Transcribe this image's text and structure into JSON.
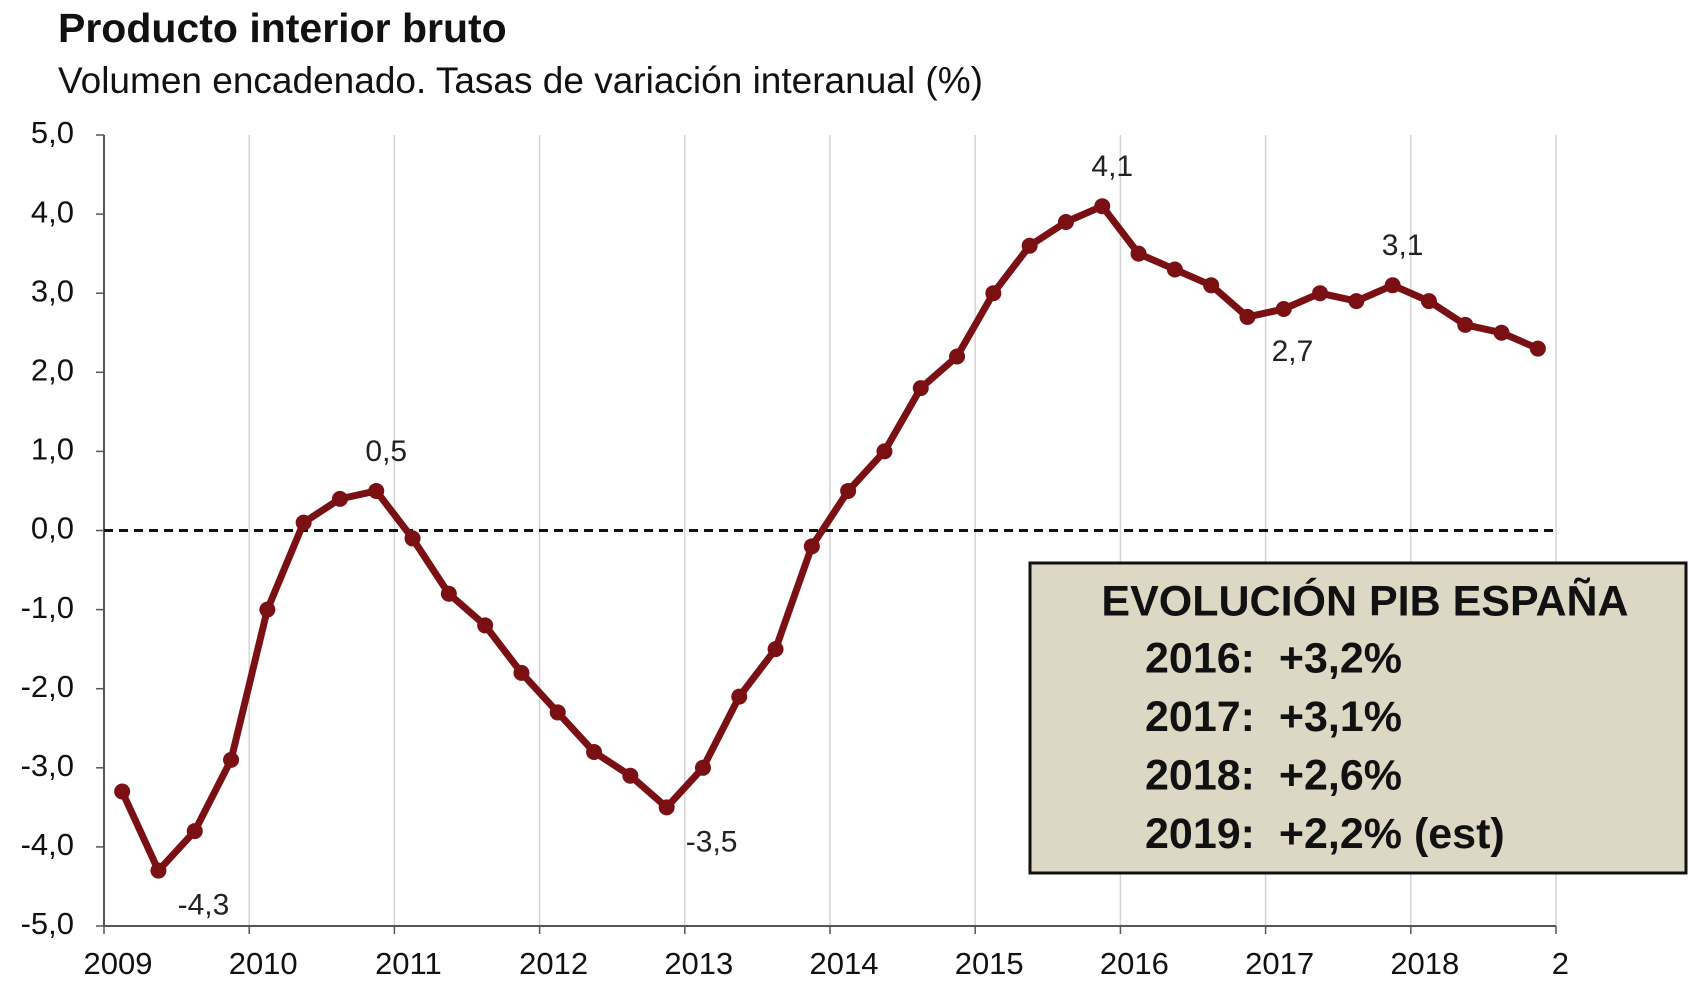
{
  "chart_data": {
    "type": "line",
    "title": "Producto interior bruto",
    "subtitle": "Volumen encadenado. Tasas de variación interanual (%)",
    "x": [
      2009.125,
      2009.375,
      2009.625,
      2009.875,
      2010.125,
      2010.375,
      2010.625,
      2010.875,
      2011.125,
      2011.375,
      2011.625,
      2011.875,
      2012.125,
      2012.375,
      2012.625,
      2012.875,
      2013.125,
      2013.375,
      2013.625,
      2013.875,
      2014.125,
      2014.375,
      2014.625,
      2014.875,
      2015.125,
      2015.375,
      2015.625,
      2015.875,
      2016.125,
      2016.375,
      2016.625,
      2016.875,
      2017.125,
      2017.375,
      2017.625,
      2017.875,
      2018.125,
      2018.375,
      2018.625,
      2018.875
    ],
    "series": [
      {
        "color": "#7a1014",
        "values": [
          -3.3,
          -4.3,
          -3.8,
          -2.9,
          -1.0,
          0.1,
          0.4,
          0.5,
          -0.1,
          -0.8,
          -1.2,
          -1.8,
          -2.3,
          -2.8,
          -3.1,
          -3.5,
          -3.0,
          -2.1,
          -1.5,
          -0.2,
          0.5,
          1.0,
          1.8,
          2.2,
          3.0,
          3.6,
          3.9,
          4.1,
          3.5,
          3.3,
          3.1,
          2.7,
          2.8,
          3.0,
          2.9,
          3.1,
          2.9,
          2.6,
          2.5,
          2.3
        ],
        "value_labels": [
          null,
          "-4,3",
          null,
          null,
          null,
          null,
          null,
          "0,5",
          null,
          null,
          null,
          null,
          null,
          null,
          null,
          "-3,5",
          null,
          null,
          null,
          null,
          null,
          null,
          null,
          null,
          null,
          null,
          null,
          "4,1",
          null,
          null,
          null,
          "2,7",
          null,
          null,
          null,
          "3,1",
          null,
          null,
          null,
          null
        ]
      }
    ],
    "xlim": [
      2009,
      2019
    ],
    "xticks": [
      2009,
      2010,
      2011,
      2012,
      2013,
      2014,
      2015,
      2016,
      2017,
      2018,
      {
        "value": 2019,
        "label": "2"
      }
    ],
    "ylim": [
      -5,
      5
    ],
    "yticks": [
      {
        "value": -5,
        "label": "-5,0"
      },
      {
        "value": -4,
        "label": "-4,0"
      },
      {
        "value": -3,
        "label": "-3,0"
      },
      {
        "value": -2,
        "label": "-2,0"
      },
      {
        "value": -1,
        "label": "-1,0"
      },
      {
        "value": 0,
        "label": "0,0"
      },
      {
        "value": 1,
        "label": "1,0"
      },
      {
        "value": 2,
        "label": "2,0"
      },
      {
        "value": 3,
        "label": "3,0"
      },
      {
        "value": 4,
        "label": "4,0"
      },
      {
        "value": 5,
        "label": "5,0"
      }
    ],
    "grid": true,
    "zero_line": true,
    "annotation_box": {
      "title": "EVOLUCIÓN PIB ESPAÑA",
      "lines": [
        "2016:  +3,2%",
        "2017:  +3,1%",
        "2018:  +2,6%",
        "2019:  +2,2% (est)"
      ]
    }
  }
}
